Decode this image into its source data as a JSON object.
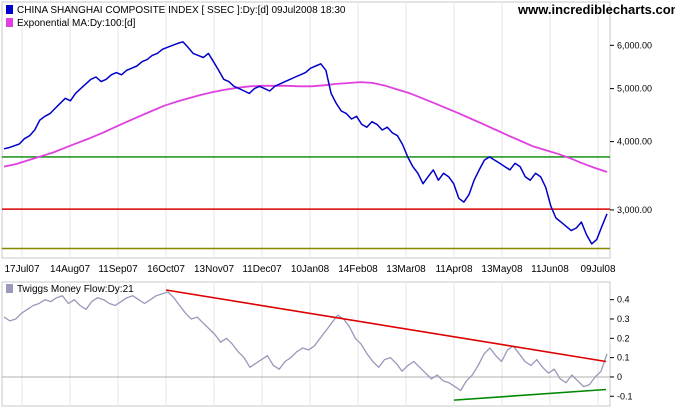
{
  "watermark": "www.incrediblecharts.com",
  "chart_data": [
    {
      "type": "line",
      "legend": [
        {
          "label": "CHINA SHANGHAI COMPOSITE INDEX [ SSEC ]:Dy:[d]  09Jul2008 18:30",
          "color": "#0000cc"
        },
        {
          "label": "Exponential MA:Dy:100:[d]",
          "color": "#e040e0"
        }
      ],
      "x_labels": [
        "17Jul07",
        "14Aug07",
        "11Sep07",
        "16Oct07",
        "13Nov07",
        "11Dec07",
        "10Jan08",
        "14Feb08",
        "13Mar08",
        "11Apr08",
        "13May08",
        "11Jun08",
        "09Jul08"
      ],
      "y_tick_labels": [
        "6,000.00",
        "5,000.00",
        "4,000.00",
        "3,000.00"
      ],
      "y_ticks": [
        6000,
        5000,
        4000,
        3000
      ],
      "ylim": [
        2450,
        6400
      ],
      "scale": "log",
      "grid": "vertical",
      "series": [
        {
          "color": "#0000cc",
          "values": [
            3880,
            3900,
            3930,
            3960,
            4050,
            4100,
            4200,
            4380,
            4450,
            4500,
            4600,
            4700,
            4800,
            4750,
            4900,
            5000,
            5100,
            5200,
            5250,
            5150,
            5200,
            5300,
            5350,
            5300,
            5400,
            5450,
            5500,
            5600,
            5650,
            5750,
            5800,
            5900,
            5950,
            6000,
            6050,
            6090,
            5950,
            5800,
            5750,
            5700,
            5800,
            5600,
            5400,
            5200,
            5150,
            5050,
            5000,
            4950,
            4900,
            5000,
            5050,
            5000,
            4950,
            5050,
            5100,
            5150,
            5200,
            5250,
            5300,
            5350,
            5450,
            5500,
            5550,
            5400,
            4900,
            4700,
            4550,
            4500,
            4400,
            4450,
            4300,
            4250,
            4350,
            4300,
            4200,
            4250,
            4150,
            4100,
            3950,
            3750,
            3600,
            3500,
            3350,
            3450,
            3550,
            3400,
            3500,
            3450,
            3350,
            3150,
            3100,
            3200,
            3400,
            3550,
            3700,
            3750,
            3700,
            3650,
            3600,
            3550,
            3650,
            3600,
            3450,
            3400,
            3500,
            3450,
            3300,
            3050,
            2900,
            2850,
            2800,
            2750,
            2780,
            2850,
            2700,
            2600,
            2650,
            2800,
            2950
          ]
        },
        {
          "color": "#e040e0",
          "values": [
            3600,
            3640,
            3700,
            3760,
            3820,
            3900,
            3980,
            4060,
            4150,
            4250,
            4350,
            4450,
            4550,
            4650,
            4730,
            4800,
            4870,
            4930,
            4980,
            5020,
            5050,
            5060,
            5060,
            5060,
            5050,
            5050,
            5070,
            5100,
            5120,
            5140,
            5120,
            5060,
            4980,
            4900,
            4800,
            4700,
            4600,
            4500,
            4400,
            4300,
            4200,
            4100,
            4010,
            3920,
            3860,
            3800,
            3730,
            3650,
            3580,
            3520
          ]
        }
      ],
      "h_lines": [
        {
          "value": 3750,
          "color": "#008800"
        },
        {
          "value": 3010,
          "color": "#dd0000"
        },
        {
          "value": 2550,
          "color": "#888800"
        }
      ]
    },
    {
      "type": "line",
      "legend": [
        {
          "label": "Twiggs Money Flow:Dy:21",
          "color": "#9999bb"
        }
      ],
      "y_tick_labels": [
        "0.4",
        "0.3",
        "0.2",
        "0.1",
        "0",
        "-0.1"
      ],
      "y_ticks": [
        0.4,
        0.3,
        0.2,
        0.1,
        0,
        -0.1
      ],
      "ylim": [
        -0.14,
        0.45
      ],
      "zero_line": true,
      "series": [
        {
          "color": "#9999bb",
          "values": [
            0.31,
            0.29,
            0.3,
            0.33,
            0.35,
            0.37,
            0.38,
            0.4,
            0.39,
            0.41,
            0.42,
            0.38,
            0.4,
            0.37,
            0.35,
            0.39,
            0.41,
            0.4,
            0.38,
            0.37,
            0.39,
            0.41,
            0.42,
            0.4,
            0.38,
            0.4,
            0.42,
            0.43,
            0.44,
            0.41,
            0.37,
            0.33,
            0.3,
            0.31,
            0.28,
            0.25,
            0.22,
            0.18,
            0.2,
            0.17,
            0.13,
            0.1,
            0.05,
            0.07,
            0.09,
            0.11,
            0.06,
            0.04,
            0.08,
            0.1,
            0.13,
            0.15,
            0.14,
            0.16,
            0.2,
            0.24,
            0.28,
            0.32,
            0.3,
            0.26,
            0.2,
            0.17,
            0.12,
            0.08,
            0.05,
            0.09,
            0.1,
            0.07,
            0.03,
            0.06,
            0.08,
            0.05,
            0.02,
            -0.01,
            0.01,
            -0.02,
            -0.03,
            -0.05,
            -0.07,
            -0.02,
            0.01,
            0.06,
            0.12,
            0.15,
            0.11,
            0.08,
            0.14,
            0.16,
            0.12,
            0.08,
            0.06,
            0.09,
            0.05,
            0.02,
            0.04,
            -0.01,
            -0.03,
            0.01,
            -0.02,
            -0.05,
            -0.04,
            0.0,
            0.03,
            0.12
          ]
        }
      ],
      "trend_lines": [
        {
          "color": "#dd0000",
          "from": {
            "x": "16Oct07",
            "y": 0.45
          },
          "to": {
            "x": "09Jul08",
            "y": 0.08
          }
        },
        {
          "color": "#008800",
          "from": {
            "x": "11Apr08",
            "y": -0.12
          },
          "to": {
            "x": "09Jul08",
            "y": -0.065
          }
        }
      ]
    }
  ]
}
